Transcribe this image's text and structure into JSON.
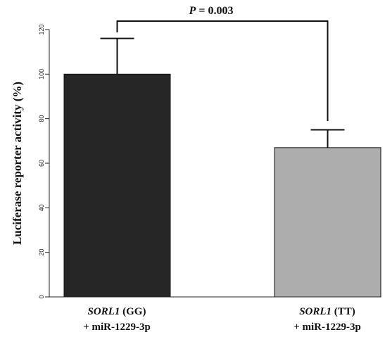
{
  "chart_data": {
    "type": "bar",
    "categories": [
      {
        "gene": "SORL1",
        "genotype": " (GG)",
        "treatment": "+ miR-1229-3p"
      },
      {
        "gene": "SORL1",
        "genotype": " (TT)",
        "treatment": "+ miR-1229-3p"
      }
    ],
    "values": [
      100,
      67
    ],
    "errors": [
      16,
      8
    ],
    "bar_colors": [
      "#262626",
      "#adadad"
    ],
    "ylabel": "Luciferase reporter activity (%)",
    "ylim": [
      0,
      120
    ],
    "yticks": [
      "0",
      "20",
      "40",
      "60",
      "80",
      "100",
      "120"
    ],
    "annotation": {
      "p_symbol": "P",
      "p_text": " = 0.003"
    },
    "grid": false
  }
}
